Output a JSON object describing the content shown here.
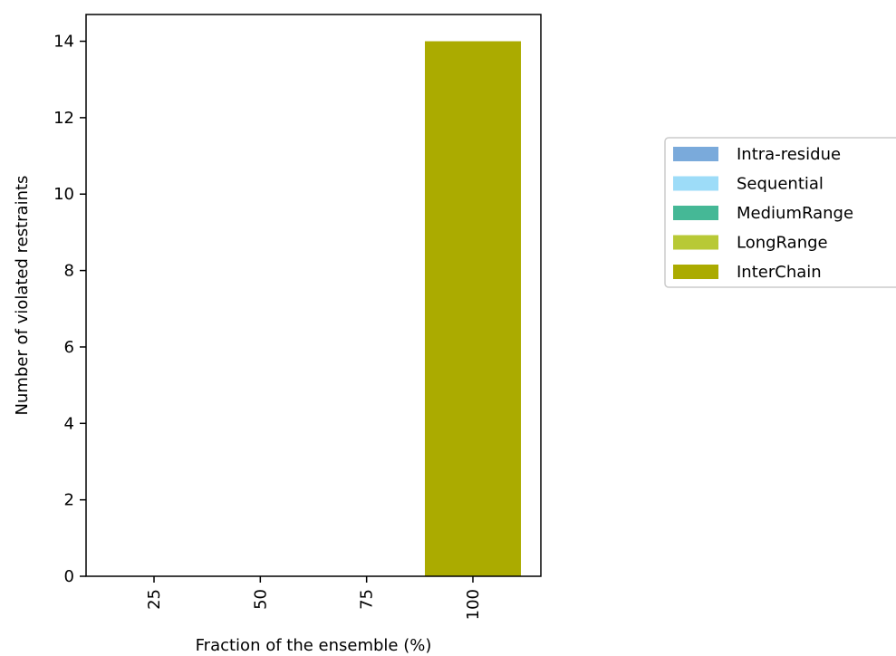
{
  "chart_data": {
    "type": "bar",
    "stacked": true,
    "categories": [
      "25",
      "50",
      "75",
      "100"
    ],
    "series": [
      {
        "name": "Intra-residue",
        "color": "#7aaadb",
        "values": [
          0,
          0,
          0,
          0
        ]
      },
      {
        "name": "Sequential",
        "color": "#9ddcf8",
        "values": [
          0,
          0,
          0,
          0
        ]
      },
      {
        "name": "MediumRange",
        "color": "#45b896",
        "values": [
          0,
          0,
          0,
          0
        ]
      },
      {
        "name": "LongRange",
        "color": "#b8c936",
        "values": [
          0,
          0,
          0,
          0
        ]
      },
      {
        "name": "InterChain",
        "color": "#abab00",
        "values": [
          0,
          0,
          0,
          14
        ]
      }
    ],
    "xlabel": "Fraction of the ensemble (%)",
    "ylabel": "Number of violated restraints",
    "ylim": [
      0,
      14.7
    ],
    "yticks": [
      0,
      2,
      4,
      6,
      8,
      10,
      12,
      14
    ],
    "grid": false,
    "legend_position": "right"
  }
}
